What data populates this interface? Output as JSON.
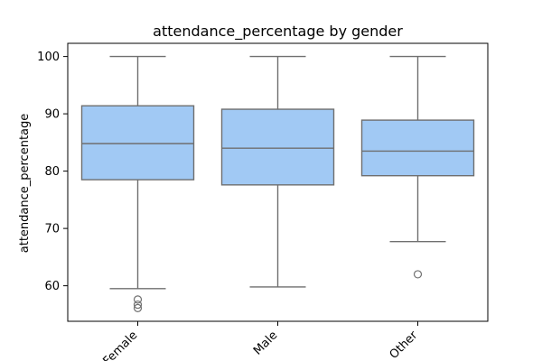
{
  "chart_data": {
    "type": "box",
    "title": "attendance_percentage by gender",
    "xlabel": "",
    "ylabel": "attendance_percentage",
    "ylim": [
      53.8,
      102.3
    ],
    "yticks": [
      60,
      70,
      80,
      90,
      100
    ],
    "grid": false,
    "colors": {
      "box_fill": "#a1c9f4",
      "box_edge": "#6f6f6f",
      "axis": "#000000"
    },
    "categories": [
      "Female",
      "Male",
      "Other"
    ],
    "boxes": [
      {
        "category": "Female",
        "whisker_low": 59.5,
        "q1": 78.5,
        "median": 84.8,
        "q3": 91.4,
        "whisker_high": 100.0,
        "outliers": [
          57.6,
          56.7,
          56.1
        ]
      },
      {
        "category": "Male",
        "whisker_low": 59.8,
        "q1": 77.6,
        "median": 84.0,
        "q3": 90.8,
        "whisker_high": 100.0,
        "outliers": []
      },
      {
        "category": "Other",
        "whisker_low": 67.7,
        "q1": 79.2,
        "median": 83.5,
        "q3": 88.9,
        "whisker_high": 100.0,
        "outliers": [
          62.0
        ]
      }
    ]
  }
}
